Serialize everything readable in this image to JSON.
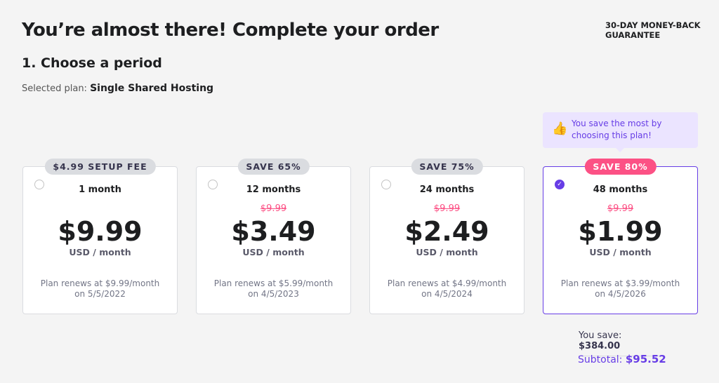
{
  "title": "You’re almost there! Complete your order",
  "guarantee": "30-DAY MONEY-BACK GUARANTEE",
  "step": "1. Choose a period",
  "selected_label": "Selected plan:",
  "selected_plan": "Single Shared Hosting",
  "tip": "You save the most by choosing this plan!",
  "plans": [
    {
      "badge": "$4.99 SETUP FEE",
      "period": "1 month",
      "old": "",
      "price": "$9.99",
      "unit": "USD / month",
      "renew": "Plan renews at $9.99/month on 5/5/2022",
      "selected": false
    },
    {
      "badge": "SAVE 65%",
      "period": "12 months",
      "old": "$9.99",
      "price": "$3.49",
      "unit": "USD / month",
      "renew": "Plan renews at $5.99/month on 4/5/2023",
      "selected": false
    },
    {
      "badge": "SAVE 75%",
      "period": "24 months",
      "old": "$9.99",
      "price": "$2.49",
      "unit": "USD / month",
      "renew": "Plan renews at $4.99/month on 4/5/2024",
      "selected": false
    },
    {
      "badge": "SAVE 80%",
      "period": "48 months",
      "old": "$9.99",
      "price": "$1.99",
      "unit": "USD / month",
      "renew": "Plan renews at $3.99/month on 4/5/2026",
      "selected": true
    }
  ],
  "you_save_label": "You save:",
  "you_save": "$384.00",
  "subtotal_label": "Subtotal:",
  "subtotal": "$95.52",
  "colors": {
    "accent": "#673de6",
    "badge_active": "#fc5185"
  }
}
